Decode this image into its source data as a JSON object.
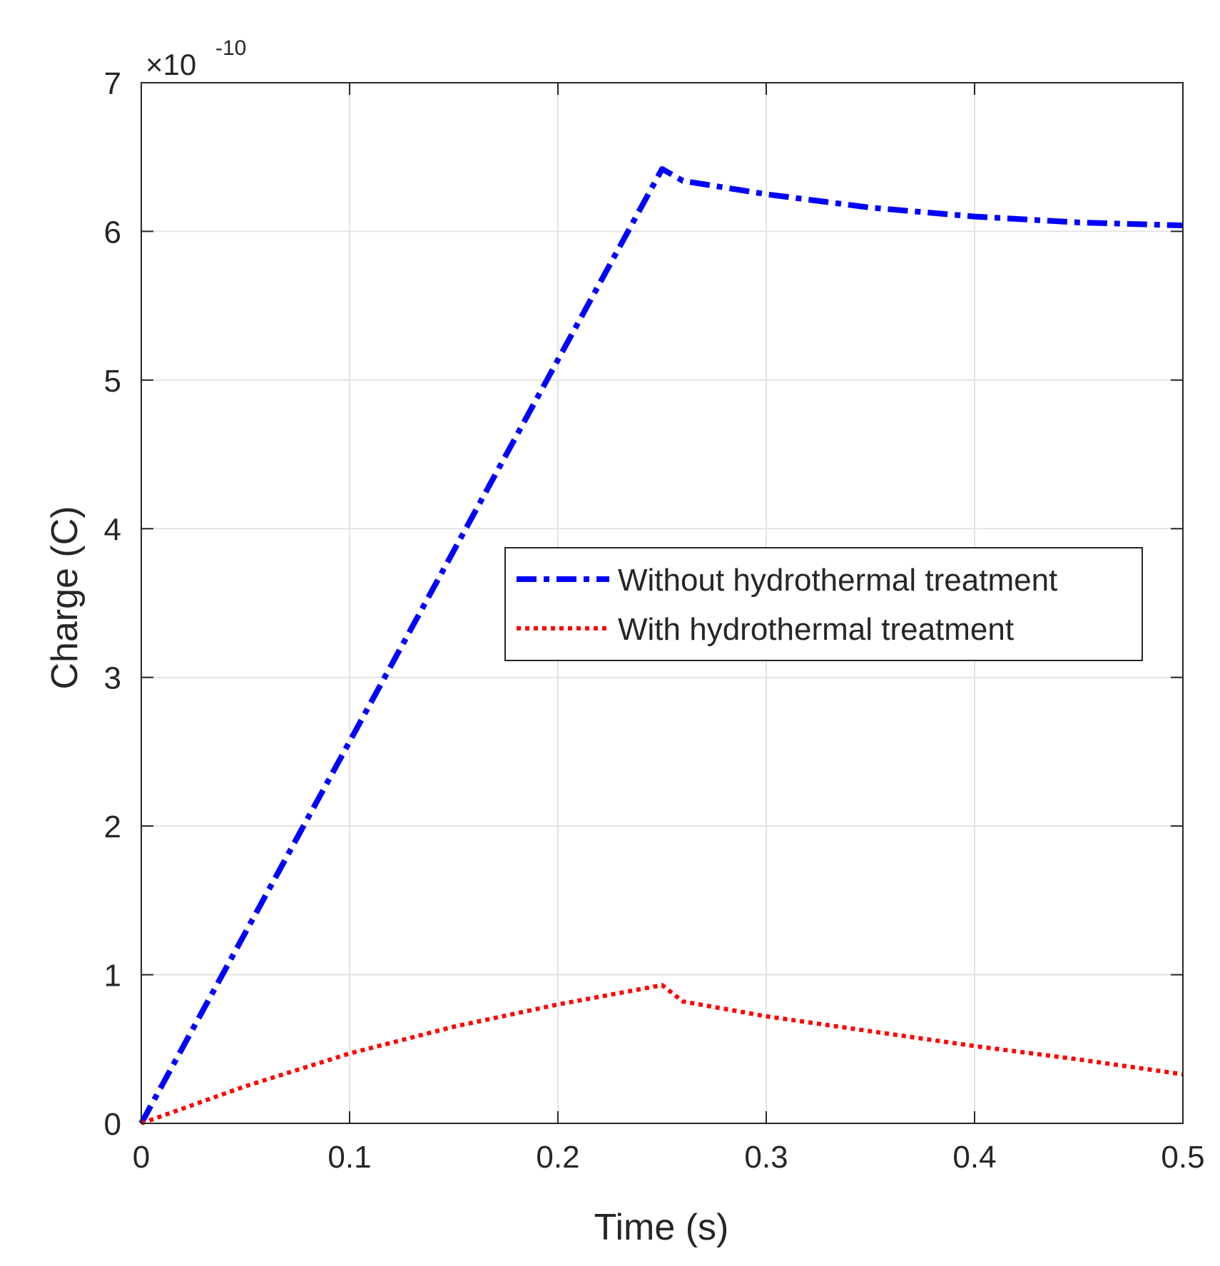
{
  "chart_data": {
    "type": "line",
    "title": "",
    "xlabel": "Time (s)",
    "ylabel": "Charge (C)",
    "y_exponent_label": "×10",
    "y_exponent_power": "-10",
    "xlim": [
      0,
      0.5
    ],
    "ylim": [
      0,
      7
    ],
    "xticks": [
      0,
      0.1,
      0.2,
      0.3,
      0.4,
      0.5
    ],
    "xtick_labels": [
      "0",
      "0.1",
      "0.2",
      "0.3",
      "0.4",
      "0.5"
    ],
    "yticks": [
      0,
      1,
      2,
      3,
      4,
      5,
      6,
      7
    ],
    "ytick_labels": [
      "0",
      "1",
      "2",
      "3",
      "4",
      "5",
      "6",
      "7"
    ],
    "grid": true,
    "legend_position": "center-right",
    "series": [
      {
        "name": "Without hydrothermal treatment",
        "color": "#0000ff",
        "style": "dashdot",
        "x": [
          0,
          0.25,
          0.26,
          0.3,
          0.35,
          0.4,
          0.45,
          0.5
        ],
        "y": [
          0,
          6.42,
          6.34,
          6.25,
          6.16,
          6.1,
          6.06,
          6.04
        ]
      },
      {
        "name": "With hydrothermal treatment",
        "color": "#ff0000",
        "style": "dotted",
        "x": [
          0,
          0.05,
          0.1,
          0.15,
          0.2,
          0.25,
          0.26,
          0.3,
          0.35,
          0.4,
          0.45,
          0.5
        ],
        "y": [
          0,
          0.25,
          0.47,
          0.65,
          0.8,
          0.93,
          0.82,
          0.72,
          0.62,
          0.52,
          0.43,
          0.33
        ]
      }
    ]
  }
}
